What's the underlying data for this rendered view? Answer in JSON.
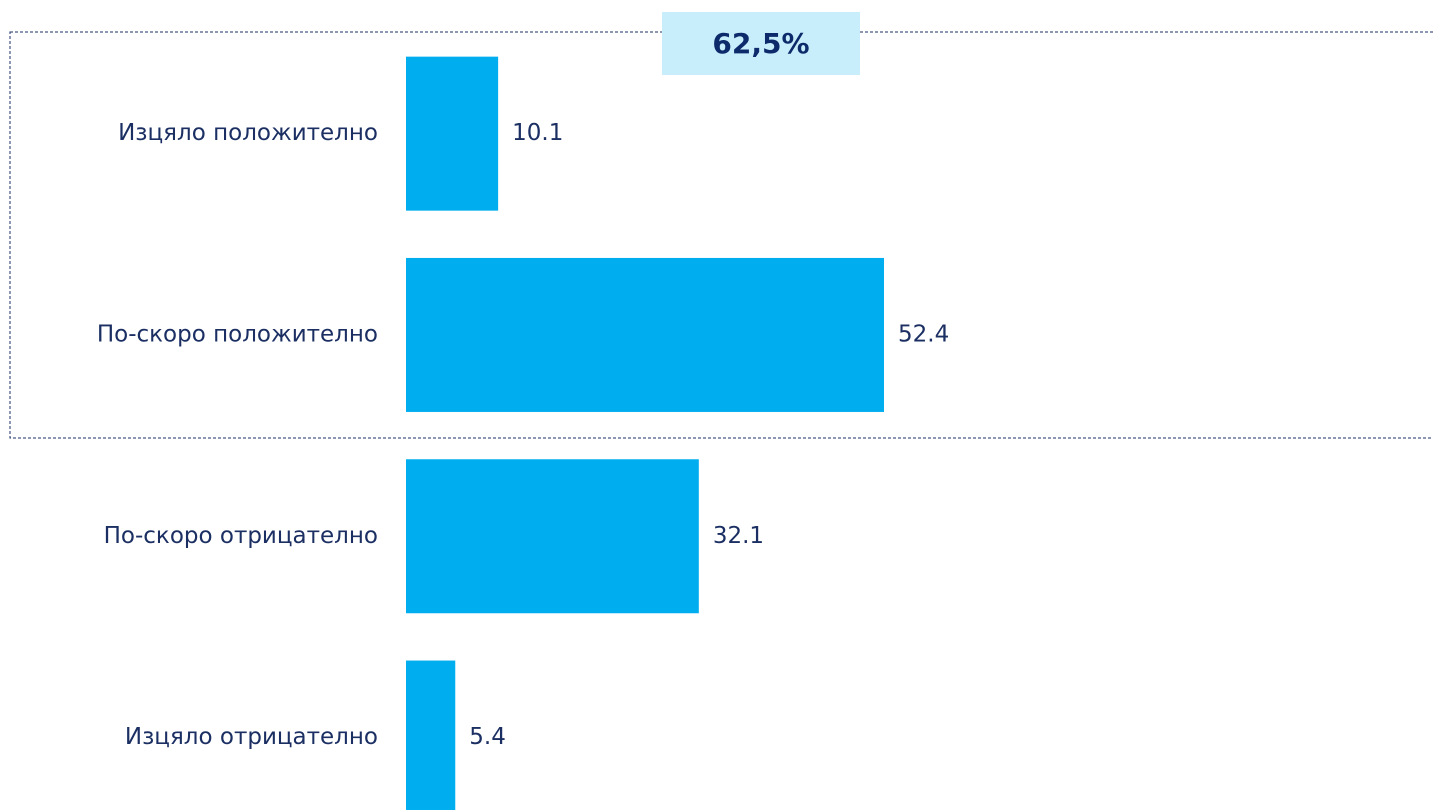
{
  "chart_data": {
    "type": "bar",
    "orientation": "horizontal",
    "categories": [
      "Изцяло положително",
      "По-скоро положително",
      "По-скоро отрицателно",
      "Изцяло отрицателно"
    ],
    "values": [
      10.1,
      52.4,
      32.1,
      5.4
    ],
    "color": "#00aeef",
    "annotation": "62,5%"
  }
}
